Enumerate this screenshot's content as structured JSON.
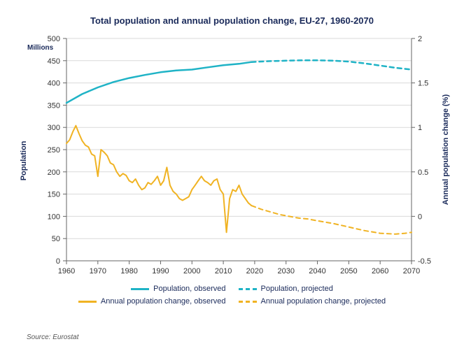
{
  "title": "Total population and annual population change, EU-27, 1960-2070",
  "source": "Source: Eurostat",
  "chart": {
    "type": "line-dual-axis",
    "background_color": "#ffffff",
    "grid_color": "#d9d9d9",
    "axis_color": "#666666",
    "x": {
      "min": 1960,
      "max": 2070,
      "ticks": [
        1960,
        1970,
        1980,
        1990,
        2000,
        2010,
        2020,
        2030,
        2040,
        2050,
        2060,
        2070
      ],
      "tick_fontsize": 11
    },
    "y_left": {
      "title": "Population",
      "unit_label": "Millions",
      "min": 0,
      "max": 500,
      "ticks": [
        0,
        50,
        100,
        150,
        200,
        250,
        300,
        350,
        400,
        450,
        500
      ],
      "tick_fontsize": 11,
      "title_fontsize": 11
    },
    "y_right": {
      "title": "Annual population change (%)",
      "min": -0.5,
      "max": 2.0,
      "ticks": [
        -0.5,
        0,
        0.5,
        1,
        1.5,
        2
      ],
      "tick_fontsize": 11,
      "title_fontsize": 11
    },
    "series": {
      "pop_observed": {
        "label": "Population, observed",
        "color": "#1fb3c6",
        "line_width": 2.5,
        "dash": "none",
        "axis": "left",
        "data": [
          [
            1960,
            355
          ],
          [
            1965,
            375
          ],
          [
            1970,
            390
          ],
          [
            1975,
            402
          ],
          [
            1980,
            411
          ],
          [
            1985,
            418
          ],
          [
            1990,
            424
          ],
          [
            1995,
            428
          ],
          [
            2000,
            430
          ],
          [
            2005,
            435
          ],
          [
            2010,
            440
          ],
          [
            2015,
            443
          ],
          [
            2019,
            447
          ]
        ]
      },
      "pop_projected": {
        "label": "Population, projected",
        "color": "#1fb3c6",
        "line_width": 2.5,
        "dash": "6,5",
        "axis": "left",
        "data": [
          [
            2019,
            447
          ],
          [
            2025,
            449
          ],
          [
            2030,
            450
          ],
          [
            2035,
            451
          ],
          [
            2040,
            451
          ],
          [
            2045,
            450
          ],
          [
            2050,
            448
          ],
          [
            2055,
            444
          ],
          [
            2060,
            439
          ],
          [
            2065,
            434
          ],
          [
            2070,
            430
          ]
        ]
      },
      "change_observed": {
        "label": "Annual population change, observed",
        "color": "#f0b323",
        "line_width": 2,
        "dash": "none",
        "axis": "right",
        "data": [
          [
            1960,
            0.82
          ],
          [
            1961,
            0.86
          ],
          [
            1962,
            0.95
          ],
          [
            1963,
            1.02
          ],
          [
            1964,
            0.93
          ],
          [
            1965,
            0.85
          ],
          [
            1966,
            0.8
          ],
          [
            1967,
            0.78
          ],
          [
            1968,
            0.7
          ],
          [
            1969,
            0.68
          ],
          [
            1970,
            0.45
          ],
          [
            1971,
            0.75
          ],
          [
            1972,
            0.72
          ],
          [
            1973,
            0.68
          ],
          [
            1974,
            0.6
          ],
          [
            1975,
            0.58
          ],
          [
            1976,
            0.5
          ],
          [
            1977,
            0.45
          ],
          [
            1978,
            0.48
          ],
          [
            1979,
            0.46
          ],
          [
            1980,
            0.4
          ],
          [
            1981,
            0.38
          ],
          [
            1982,
            0.42
          ],
          [
            1983,
            0.35
          ],
          [
            1984,
            0.3
          ],
          [
            1985,
            0.32
          ],
          [
            1986,
            0.38
          ],
          [
            1987,
            0.36
          ],
          [
            1988,
            0.4
          ],
          [
            1989,
            0.45
          ],
          [
            1990,
            0.35
          ],
          [
            1991,
            0.4
          ],
          [
            1992,
            0.55
          ],
          [
            1993,
            0.35
          ],
          [
            1994,
            0.28
          ],
          [
            1995,
            0.25
          ],
          [
            1996,
            0.2
          ],
          [
            1997,
            0.18
          ],
          [
            1998,
            0.2
          ],
          [
            1999,
            0.22
          ],
          [
            2000,
            0.3
          ],
          [
            2001,
            0.35
          ],
          [
            2002,
            0.4
          ],
          [
            2003,
            0.45
          ],
          [
            2004,
            0.4
          ],
          [
            2005,
            0.38
          ],
          [
            2006,
            0.35
          ],
          [
            2007,
            0.4
          ],
          [
            2008,
            0.42
          ],
          [
            2009,
            0.3
          ],
          [
            2010,
            0.25
          ],
          [
            2011,
            -0.18
          ],
          [
            2012,
            0.2
          ],
          [
            2013,
            0.3
          ],
          [
            2014,
            0.28
          ],
          [
            2015,
            0.35
          ],
          [
            2016,
            0.25
          ],
          [
            2017,
            0.2
          ],
          [
            2018,
            0.15
          ],
          [
            2019,
            0.12
          ]
        ]
      },
      "change_projected": {
        "label": "Annual population change, projected",
        "color": "#f0b323",
        "line_width": 2,
        "dash": "6,5",
        "axis": "right",
        "data": [
          [
            2019,
            0.12
          ],
          [
            2022,
            0.08
          ],
          [
            2025,
            0.05
          ],
          [
            2028,
            0.02
          ],
          [
            2031,
            0.0
          ],
          [
            2034,
            -0.02
          ],
          [
            2037,
            -0.03
          ],
          [
            2040,
            -0.05
          ],
          [
            2045,
            -0.08
          ],
          [
            2050,
            -0.12
          ],
          [
            2055,
            -0.16
          ],
          [
            2060,
            -0.19
          ],
          [
            2065,
            -0.2
          ],
          [
            2068,
            -0.19
          ],
          [
            2070,
            -0.18
          ]
        ]
      }
    }
  },
  "legend": {
    "items": [
      {
        "key": "pop_observed"
      },
      {
        "key": "pop_projected"
      },
      {
        "key": "change_observed"
      },
      {
        "key": "change_projected"
      }
    ]
  }
}
